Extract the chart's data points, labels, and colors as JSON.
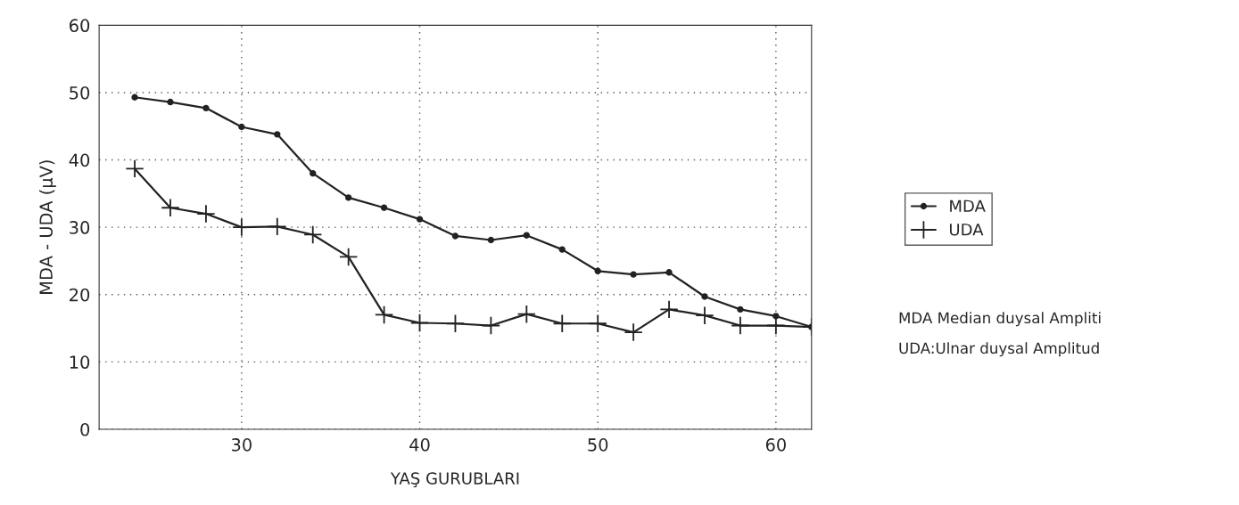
{
  "chart_data": {
    "type": "line",
    "xlabel": "YAŞ GURUBLARI",
    "ylabel": "MDA - UDA (µV)",
    "x": [
      24,
      26,
      28,
      30,
      32,
      34,
      36,
      38,
      40,
      42,
      44,
      46,
      48,
      50,
      52,
      54,
      56,
      58,
      60,
      62
    ],
    "series": [
      {
        "name": "MDA",
        "color": "#222222",
        "marker": "circle",
        "values": [
          49.3,
          48.6,
          47.7,
          44.9,
          43.8,
          38.0,
          34.4,
          32.9,
          31.2,
          28.7,
          28.1,
          28.8,
          26.7,
          23.5,
          23.0,
          23.3,
          19.7,
          17.8,
          16.8,
          15.2
        ]
      },
      {
        "name": "UDA",
        "color": "#222222",
        "marker": "cross",
        "values": [
          38.7,
          32.9,
          32.0,
          30.0,
          30.1,
          28.9,
          25.6,
          17.0,
          15.8,
          15.7,
          15.4,
          17.1,
          15.7,
          15.7,
          14.4,
          17.8,
          16.9,
          15.4,
          15.4,
          15.2
        ]
      }
    ],
    "xlim": [
      22,
      62
    ],
    "ylim": [
      0,
      60
    ],
    "xticks": [
      30,
      40,
      50,
      60
    ],
    "yticks": [
      0,
      10,
      20,
      30,
      40,
      50,
      60
    ],
    "grid": true,
    "legend": "right",
    "line_style": "solid",
    "annotations": [
      "MDA Median duysal Ampliti",
      "UDA:Ulnar duysal Amplitud"
    ]
  }
}
